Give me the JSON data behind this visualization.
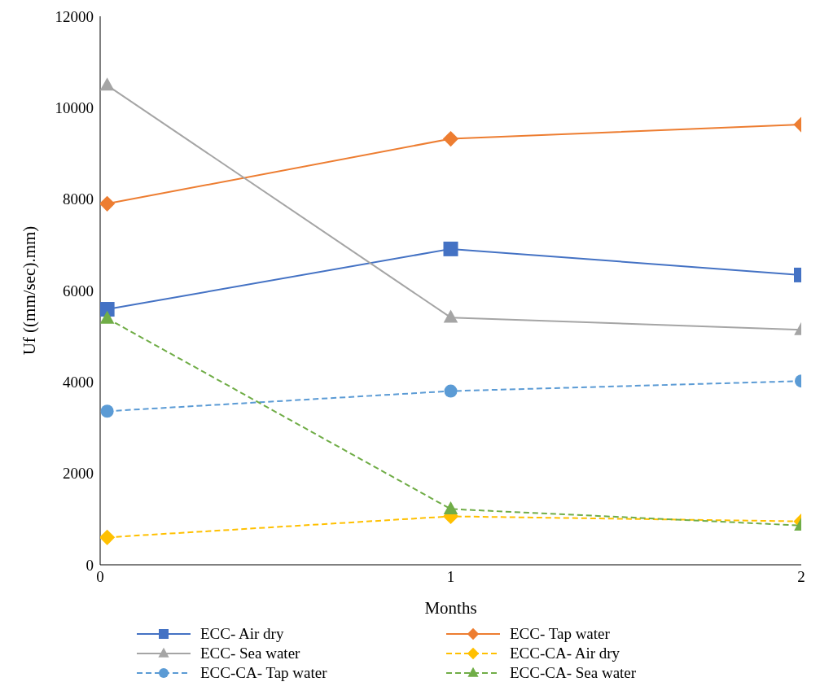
{
  "chart_data": {
    "type": "line",
    "xlabel": "Months",
    "ylabel": "Uf ((mm/sec).mm)",
    "x": [
      0.02,
      1,
      2
    ],
    "xlim": [
      0,
      2
    ],
    "xticks": [
      0,
      1,
      2
    ],
    "ylim": [
      0,
      12000
    ],
    "yticks": [
      0,
      2000,
      4000,
      6000,
      8000,
      10000,
      12000
    ],
    "grid": false,
    "legend": "bottom",
    "series": [
      {
        "name": "ECC- Air dry",
        "color": "#4472c4",
        "values": [
          5590,
          6910,
          6340
        ],
        "marker": "square",
        "line_style": "solid"
      },
      {
        "name": "ECC- Tap water",
        "color": "#ed7d31",
        "values": [
          7900,
          9320,
          9630
        ],
        "marker": "diamond",
        "line_style": "solid"
      },
      {
        "name": "ECC- Sea water",
        "color": "#a5a5a5",
        "values": [
          10490,
          5410,
          5140
        ],
        "marker": "triangle",
        "line_style": "solid"
      },
      {
        "name": "ECC-CA- Air dry",
        "color": "#ffc000",
        "values": [
          600,
          1060,
          950
        ],
        "marker": "diamond",
        "line_style": "dashed"
      },
      {
        "name": "ECC-CA- Tap water",
        "color": "#5b9bd5",
        "values": [
          3360,
          3800,
          4020
        ],
        "marker": "circle",
        "line_style": "dashed"
      },
      {
        "name": "ECC-CA- Sea water",
        "color": "#70ad47",
        "values": [
          5390,
          1220,
          860
        ],
        "marker": "triangle",
        "line_style": "dashed"
      }
    ]
  }
}
